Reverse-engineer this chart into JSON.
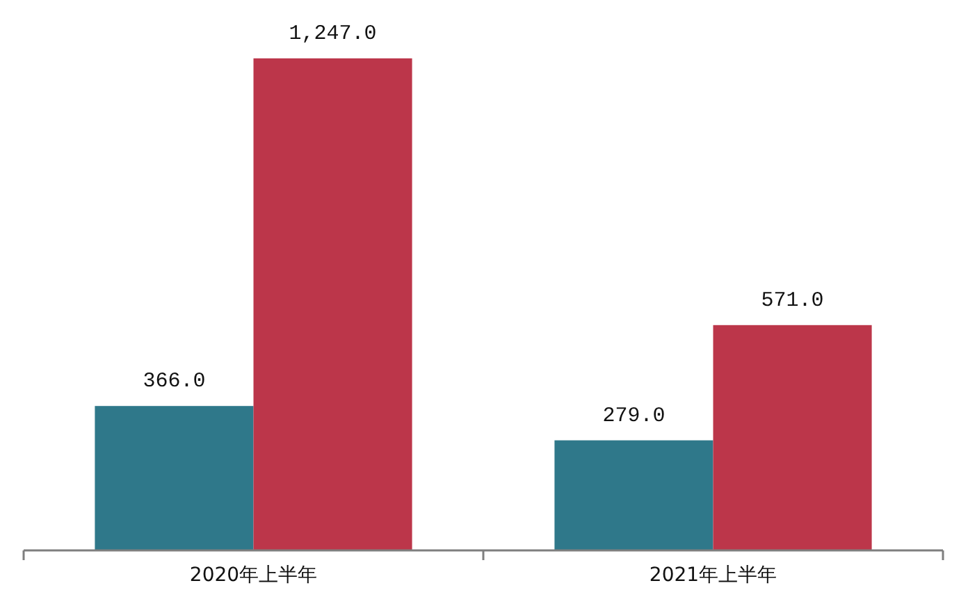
{
  "chart_data": {
    "type": "bar",
    "categories": [
      "2020年上半年",
      "2021年上半年"
    ],
    "series": [
      {
        "color": "#2f788a",
        "values": [
          366.0,
          279.0
        ],
        "value_labels": [
          "366.0",
          "279.0"
        ]
      },
      {
        "color": "#bc364a",
        "values": [
          1247.0,
          571.0
        ],
        "value_labels": [
          "1,247.0",
          "571.0"
        ]
      }
    ],
    "tick_labels": "x"
  }
}
